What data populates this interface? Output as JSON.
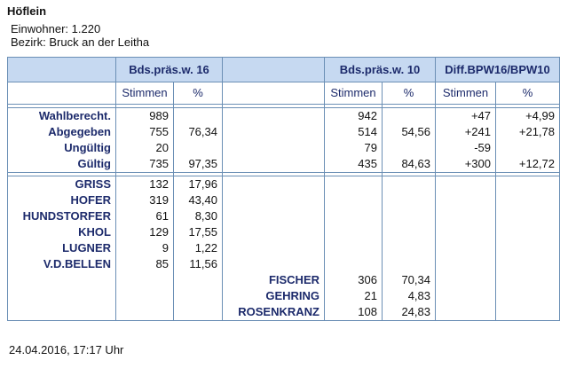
{
  "header": {
    "title": "Höflein",
    "population": "Einwohner: 1.220",
    "district": "Bezirk: Bruck an der Leitha"
  },
  "table": {
    "group_headers": [
      "Bds.präs.w. 16",
      "Bds.präs.w. 10",
      "Diff.BPW16/BPW10"
    ],
    "sub_headers": [
      "Stimmen",
      "%",
      "Stimmen",
      "%",
      "Stimmen",
      "%"
    ],
    "summary_rows": [
      {
        "label": "Wahlberecht.",
        "votes16": "989",
        "votes10": "942",
        "diff_votes": "+47",
        "diff_pct": "+4,99"
      },
      {
        "label": "Abgegeben",
        "votes16": "755",
        "pct16": "76,34",
        "votes10": "514",
        "pct10": "54,56",
        "diff_votes": "+241",
        "diff_pct": "+21,78"
      },
      {
        "label": "Ungültig",
        "votes16": "20",
        "votes10": "79",
        "diff_votes": "-59"
      },
      {
        "label": "Gültig",
        "votes16": "735",
        "pct16": "97,35",
        "votes10": "435",
        "pct10": "84,63",
        "diff_votes": "+300",
        "diff_pct": "+12,72"
      }
    ],
    "candidates16": [
      {
        "name": "GRISS",
        "votes": "132",
        "pct": "17,96"
      },
      {
        "name": "HOFER",
        "votes": "319",
        "pct": "43,40"
      },
      {
        "name": "HUNDSTORFER",
        "votes": "61",
        "pct": "8,30"
      },
      {
        "name": "KHOL",
        "votes": "129",
        "pct": "17,55"
      },
      {
        "name": "LUGNER",
        "votes": "9",
        "pct": "1,22"
      },
      {
        "name": "V.D.BELLEN",
        "votes": "85",
        "pct": "11,56"
      }
    ],
    "candidates10": [
      {
        "name": "FISCHER",
        "votes": "306",
        "pct": "70,34"
      },
      {
        "name": "GEHRING",
        "votes": "21",
        "pct": "4,83"
      },
      {
        "name": "ROSENKRANZ",
        "votes": "108",
        "pct": "24,83"
      }
    ]
  },
  "footer": {
    "timestamp": "24.04.2016, 17:17 Uhr"
  }
}
